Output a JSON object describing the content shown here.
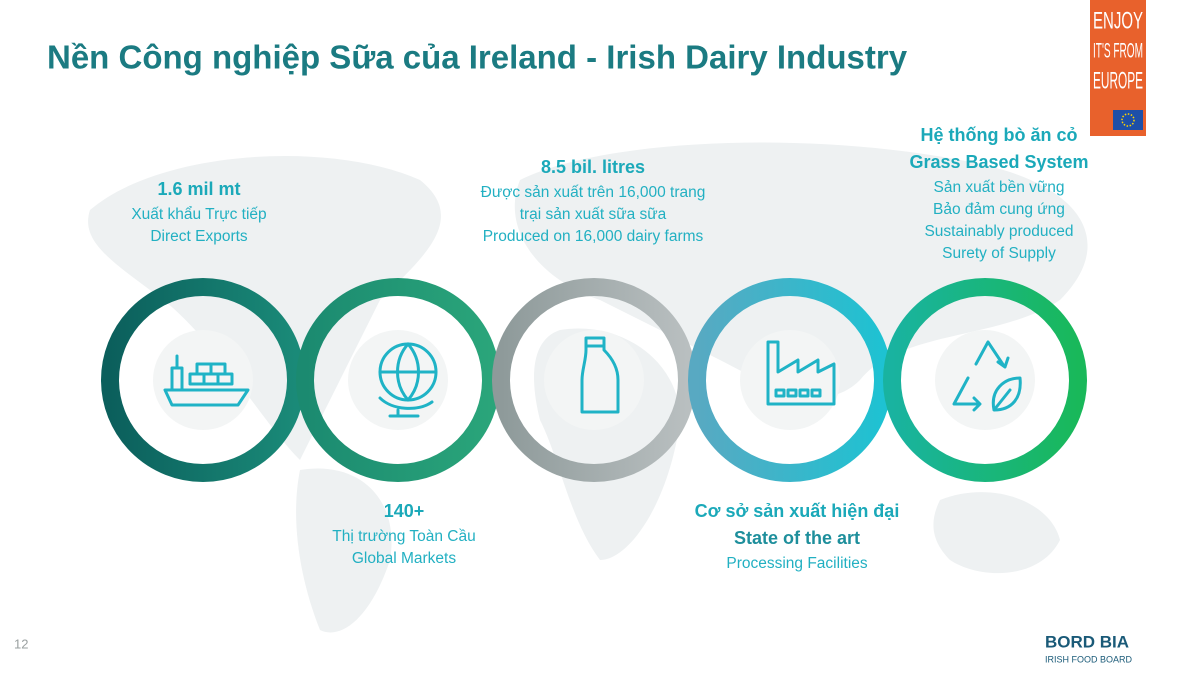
{
  "title": "Nền Công nghiệp Sữa của Ireland - Irish Dairy Industry",
  "badge": {
    "lines": [
      "ENJOY",
      "IT'S FROM",
      "EUROPE"
    ]
  },
  "stats": [
    {
      "headlines": [
        "1.6 mil mt"
      ],
      "lines": [
        "Xuất khẩu Trực tiếp",
        "Direct Exports"
      ]
    },
    {
      "headlines": [
        "140+"
      ],
      "lines": [
        "Thị trường Toàn Cầu",
        "Global Markets"
      ]
    },
    {
      "headlines": [
        "8.5 bil. litres"
      ],
      "lines": [
        "Được sản xuất trên 16,000 trang",
        "trại sản xuất sữa sữa",
        "Produced on 16,000 dairy farms"
      ]
    },
    {
      "headlines": [
        "Cơ sở sản xuất hiện đại",
        "State of the art"
      ],
      "lines": [
        "Processing Facilities"
      ]
    },
    {
      "headlines": [
        "Hệ thống bò ăn cỏ",
        "Grass Based System"
      ],
      "lines": [
        "Sản xuất bền vững",
        "Bảo đảm cung ứng",
        "Sustainably produced",
        "Surety of Supply"
      ]
    }
  ],
  "page_number": "12",
  "brand": {
    "name": "BORD BIA",
    "tagline": "IRISH FOOD BOARD"
  }
}
